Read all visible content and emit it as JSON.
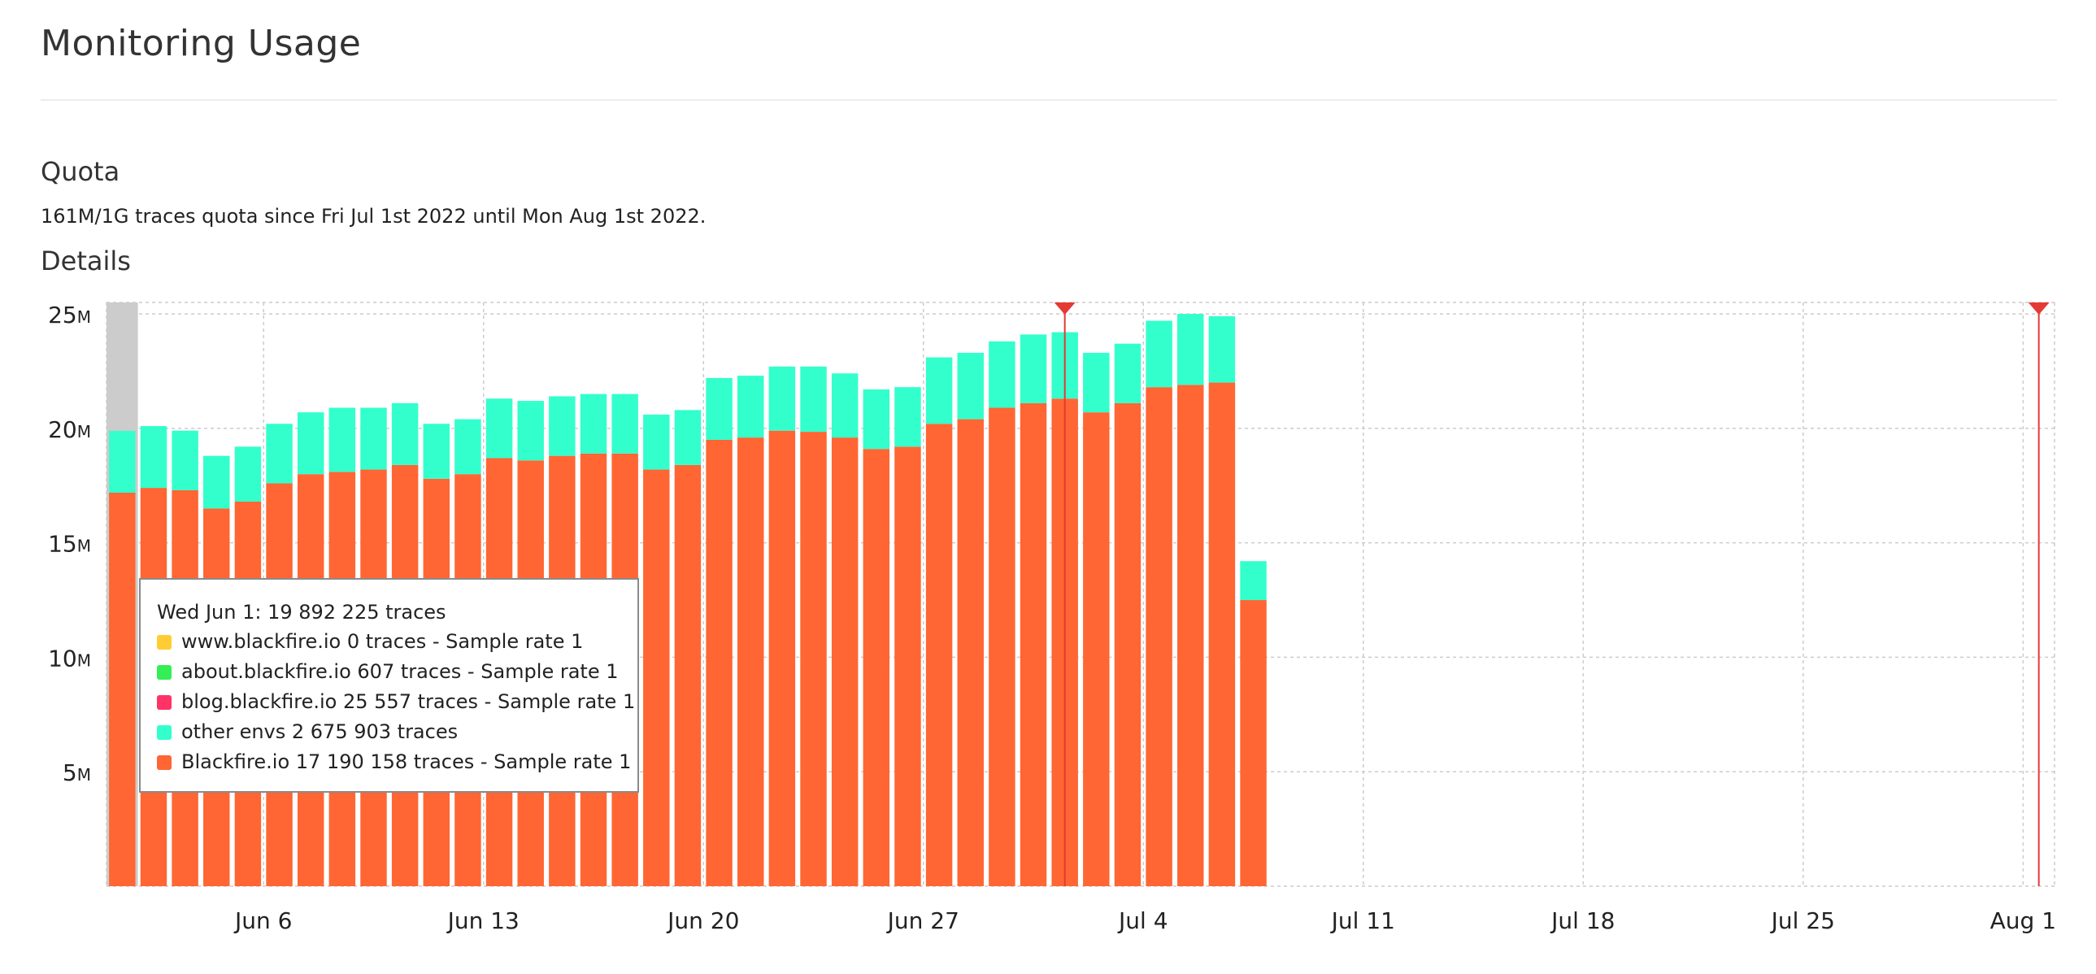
{
  "page": {
    "title": "Monitoring Usage",
    "quota_heading": "Quota",
    "quota_text": "161M/1G traces quota since Fri Jul 1st 2022 until Mon Aug 1st 2022.",
    "details_heading": "Details"
  },
  "colors": {
    "blackfire": "#ff6633",
    "other_envs": "#33ffcc",
    "www": "#ffcc33",
    "about": "#33ee55",
    "blog": "#ff3366",
    "marker": "#e53935",
    "hover_highlight": "#cccccc",
    "grid": "#cccccc"
  },
  "tooltip": {
    "title": "Wed Jun 1: 19 892 225 traces",
    "rows": [
      {
        "label": "www.blackfire.io 0 traces - Sample rate 1",
        "color": "#ffcc33"
      },
      {
        "label": "about.blackfire.io 607 traces - Sample rate 1",
        "color": "#33ee55"
      },
      {
        "label": "blog.blackfire.io 25 557 traces - Sample rate 1",
        "color": "#ff3366"
      },
      {
        "label": "other envs 2 675 903 traces",
        "color": "#33ffcc"
      },
      {
        "label": "Blackfire.io 17 190 158 traces - Sample rate 1",
        "color": "#ff6633"
      }
    ]
  },
  "chart_data": {
    "type": "bar",
    "stacked": true,
    "x_range": [
      "2022-06-01",
      "2022-08-02"
    ],
    "ylim": [
      0,
      25.5
    ],
    "y_unit": "M",
    "y_ticks": [
      {
        "value": 5,
        "label": "5"
      },
      {
        "value": 10,
        "label": "10"
      },
      {
        "value": 15,
        "label": "15"
      },
      {
        "value": 20,
        "label": "20"
      },
      {
        "value": 25,
        "label": "25"
      }
    ],
    "y_tick_suffix": "M",
    "x_ticks": [
      {
        "date": "2022-06-06",
        "label": "Jun 6"
      },
      {
        "date": "2022-06-13",
        "label": "Jun 13"
      },
      {
        "date": "2022-06-20",
        "label": "Jun 20"
      },
      {
        "date": "2022-06-27",
        "label": "Jun 27"
      },
      {
        "date": "2022-07-04",
        "label": "Jul 4"
      },
      {
        "date": "2022-07-11",
        "label": "Jul 11"
      },
      {
        "date": "2022-07-18",
        "label": "Jul 18"
      },
      {
        "date": "2022-07-25",
        "label": "Jul 25"
      },
      {
        "date": "2022-08-01",
        "label": "Aug 1"
      }
    ],
    "dates": [
      "2022-06-01",
      "2022-06-02",
      "2022-06-03",
      "2022-06-04",
      "2022-06-05",
      "2022-06-06",
      "2022-06-07",
      "2022-06-08",
      "2022-06-09",
      "2022-06-10",
      "2022-06-11",
      "2022-06-12",
      "2022-06-13",
      "2022-06-14",
      "2022-06-15",
      "2022-06-16",
      "2022-06-17",
      "2022-06-18",
      "2022-06-19",
      "2022-06-20",
      "2022-06-21",
      "2022-06-22",
      "2022-06-23",
      "2022-06-24",
      "2022-06-25",
      "2022-06-26",
      "2022-06-27",
      "2022-06-28",
      "2022-06-29",
      "2022-06-30",
      "2022-07-01",
      "2022-07-02",
      "2022-07-03",
      "2022-07-04",
      "2022-07-05",
      "2022-07-06",
      "2022-07-07"
    ],
    "series": [
      {
        "key": "blackfire",
        "values": [
          17.19,
          17.4,
          17.3,
          16.5,
          16.8,
          17.6,
          18.0,
          18.1,
          18.2,
          18.4,
          17.8,
          18.0,
          18.7,
          18.6,
          18.8,
          18.9,
          18.9,
          18.2,
          18.4,
          19.5,
          19.6,
          19.9,
          19.85,
          19.6,
          19.1,
          19.2,
          20.2,
          20.4,
          20.9,
          21.1,
          21.3,
          20.7,
          21.1,
          21.8,
          21.9,
          22.0,
          12.5
        ]
      },
      {
        "key": "other_envs",
        "values": [
          2.7,
          2.7,
          2.6,
          2.3,
          2.4,
          2.6,
          2.7,
          2.8,
          2.7,
          2.7,
          2.4,
          2.4,
          2.6,
          2.6,
          2.6,
          2.6,
          2.6,
          2.4,
          2.4,
          2.7,
          2.7,
          2.8,
          2.85,
          2.8,
          2.6,
          2.6,
          2.9,
          2.9,
          2.9,
          3.0,
          2.9,
          2.6,
          2.6,
          2.9,
          3.1,
          2.9,
          1.7
        ]
      }
    ],
    "highlight_date": "2022-06-01",
    "markers": [
      "2022-07-01",
      "2022-08-01"
    ]
  }
}
